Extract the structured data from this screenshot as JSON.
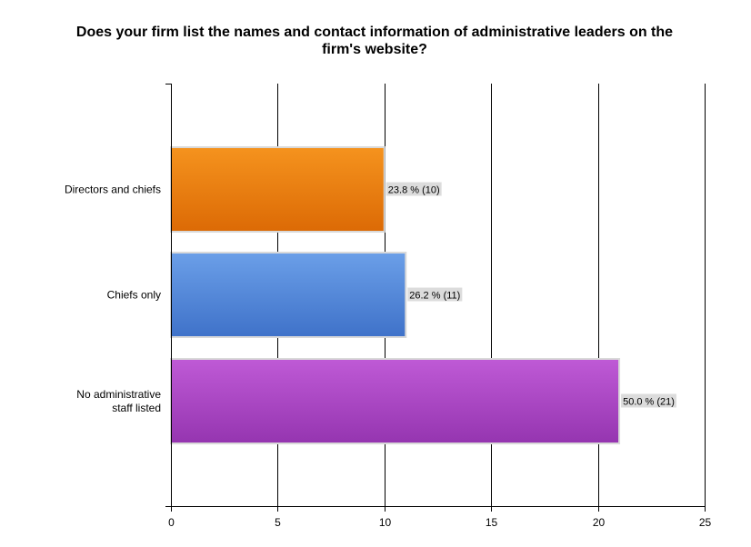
{
  "chart_data": {
    "type": "bar",
    "orientation": "horizontal",
    "title_lines": [
      "Does your firm list the names and contact information of administrative leaders on the",
      "firm's website?"
    ],
    "categories": [
      [
        "Directors and chiefs"
      ],
      [
        "Chiefs only"
      ],
      [
        "No administrative",
        "staff listed"
      ]
    ],
    "values": [
      10,
      11,
      21
    ],
    "data_labels": [
      "23.8 % (10)",
      "26.2 % (11)",
      "50.0 % (21)"
    ],
    "colors": [
      {
        "top": "#f5931e",
        "bottom": "#dc6a05"
      },
      {
        "top": "#6b9fe8",
        "bottom": "#3f72c9"
      },
      {
        "top": "#bf5ad6",
        "bottom": "#9535b0"
      }
    ],
    "xlim": [
      0,
      25
    ],
    "xticks": [
      0,
      5,
      10,
      15,
      20,
      25
    ],
    "grid": true,
    "legend": "none"
  }
}
